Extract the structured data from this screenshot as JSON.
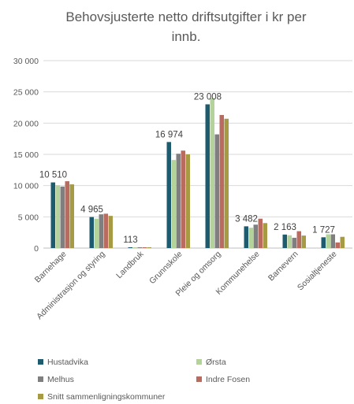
{
  "chart_data": {
    "type": "bar",
    "title_lines": [
      "Behovsjusterte netto driftsutgifter i kr per",
      "innb."
    ],
    "categories": [
      "Barnehage",
      "Administrasjon og styring",
      "Landbruk",
      "Grunnskole",
      "Pleie og omsorg",
      "Kommunehelse",
      "Barnevern",
      "Sosialtjeneste"
    ],
    "ylim": [
      0,
      30000
    ],
    "yticks": [
      0,
      5000,
      10000,
      15000,
      20000,
      25000,
      30000
    ],
    "ytick_labels": [
      "0",
      "5 000",
      "10 000",
      "15 000",
      "20 000",
      "25 000",
      "30 000"
    ],
    "grid": true,
    "legend_position": "bottom",
    "series": [
      {
        "name": "Hustadvika",
        "color": "#1f5b6e",
        "values": [
          10510,
          4965,
          113,
          16974,
          23008,
          3482,
          2163,
          1727
        ]
      },
      {
        "name": "Ørsta",
        "color": "#b3d39a",
        "values": [
          10050,
          4700,
          100,
          14100,
          24000,
          3250,
          2050,
          2200
        ]
      },
      {
        "name": "Melhus",
        "color": "#7f7f7f",
        "values": [
          9850,
          5400,
          110,
          15100,
          18200,
          3750,
          1650,
          2200
        ]
      },
      {
        "name": "Indre Fosen",
        "color": "#b96b60",
        "values": [
          10700,
          5500,
          105,
          15600,
          21300,
          4700,
          2700,
          900
        ]
      },
      {
        "name": "Snitt sammenligningskommuner",
        "color": "#a79a45",
        "values": [
          10200,
          5150,
          95,
          15000,
          20700,
          4000,
          2000,
          1800
        ]
      }
    ],
    "data_labels": [
      "10 510",
      "4 965",
      "113",
      "16 974",
      "23 008",
      "3 482",
      "2 163",
      "1 727"
    ]
  }
}
